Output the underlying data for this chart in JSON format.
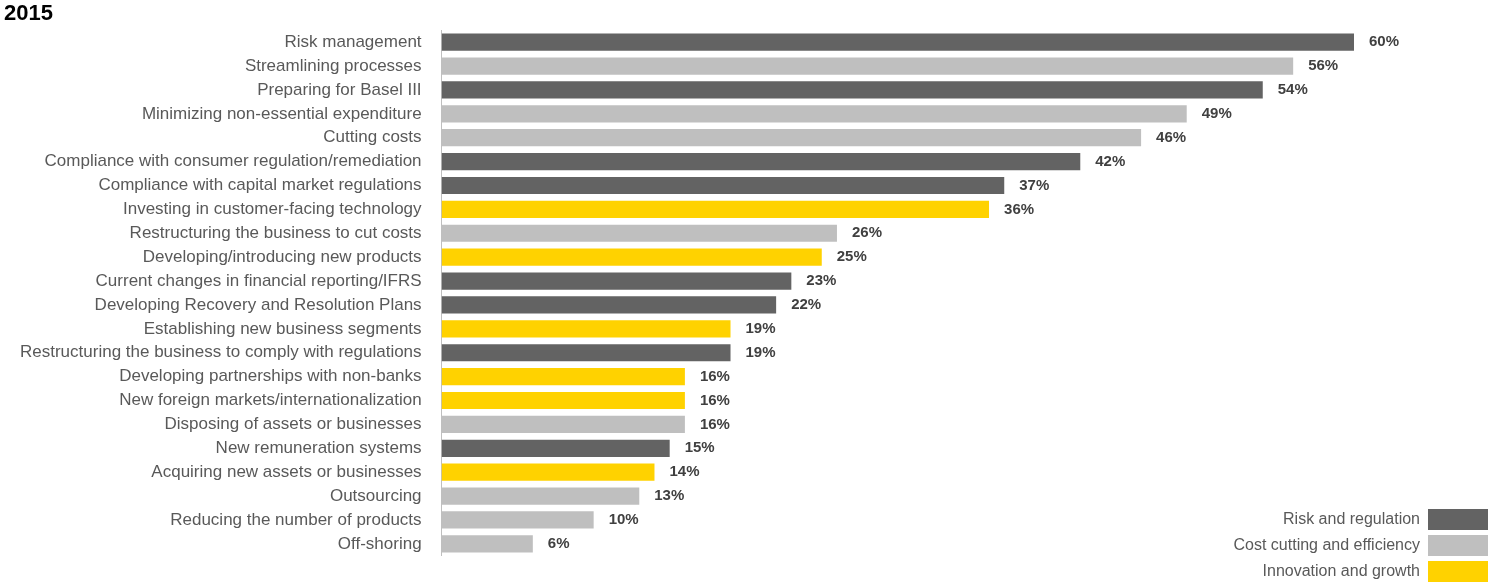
{
  "chart_data": {
    "type": "bar",
    "orientation": "horizontal",
    "title": "2015",
    "legend": "bottom right",
    "categories": [
      "Risk management",
      "Streamlining processes",
      "Preparing for Basel III",
      "Minimizing non-essential expenditure",
      "Cutting costs",
      "Compliance with consumer regulation/remediation",
      "Compliance with capital market regulations",
      "Investing in customer-facing technology",
      "Restructuring the business to cut costs",
      "Developing/introducing new products",
      "Current changes in financial reporting/IFRS",
      "Developing Recovery and Resolution Plans",
      "Establishing new business segments",
      "Restructuring the business to comply with regulations",
      "Developing partnerships with non-banks",
      "New foreign markets/internationalization",
      "Disposing of assets or businesses",
      "New remuneration systems",
      "Acquiring new assets or businesses",
      "Outsourcing",
      "Reducing the number of products",
      "Off-shoring"
    ],
    "series": [
      {
        "name": "Risk and regulation",
        "color": "#636363",
        "values": [
          60,
          null,
          54,
          null,
          null,
          42,
          37,
          null,
          null,
          null,
          23,
          22,
          null,
          19,
          null,
          null,
          null,
          15,
          null,
          null,
          null,
          null
        ],
        "value_labels": [
          "60%",
          null,
          "54%",
          null,
          null,
          "42%",
          "37%",
          null,
          null,
          null,
          "23%",
          "22%",
          null,
          "19%",
          null,
          null,
          null,
          "15%",
          null,
          null,
          null,
          null
        ]
      },
      {
        "name": "Cost cutting and efficiency",
        "color": "#bfbfbf",
        "values": [
          null,
          56,
          null,
          49,
          46,
          null,
          null,
          null,
          26,
          null,
          null,
          null,
          null,
          null,
          null,
          null,
          16,
          null,
          null,
          13,
          10,
          6
        ],
        "value_labels": [
          null,
          "56%",
          null,
          "49%",
          "46%",
          null,
          null,
          null,
          "26%",
          null,
          null,
          null,
          null,
          null,
          null,
          null,
          "16%",
          null,
          null,
          "13%",
          "10%",
          "6%"
        ]
      },
      {
        "name": "Innovation and growth",
        "color": "#ffd200",
        "values": [
          null,
          null,
          null,
          null,
          null,
          null,
          null,
          36,
          null,
          25,
          null,
          null,
          19,
          null,
          16,
          16,
          null,
          null,
          14,
          null,
          null,
          null
        ],
        "value_labels": [
          null,
          null,
          null,
          null,
          null,
          null,
          null,
          "36%",
          null,
          "25%",
          null,
          null,
          "19%",
          null,
          "16%",
          "16%",
          null,
          null,
          "14%",
          null,
          null,
          null
        ]
      }
    ]
  }
}
